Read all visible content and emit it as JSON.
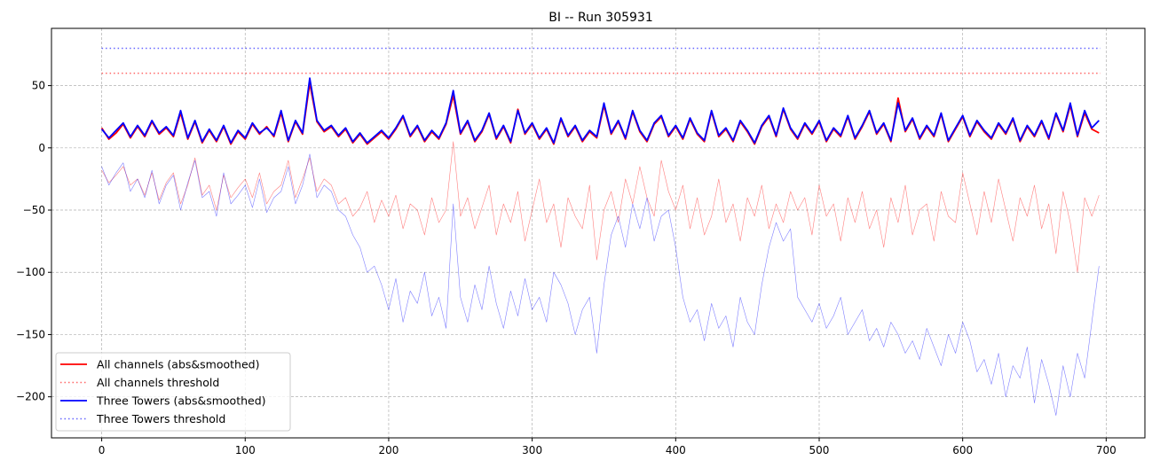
{
  "chart_data": {
    "type": "line",
    "title": "BI -- Run 305931",
    "xlabel": "",
    "ylabel": "",
    "xlim": [
      -35,
      727
    ],
    "ylim": [
      -233,
      96
    ],
    "xticks": [
      0,
      100,
      200,
      300,
      400,
      500,
      600,
      700
    ],
    "yticks": [
      -200,
      -150,
      -100,
      -50,
      0,
      50
    ],
    "grid": true,
    "legend_position": "lower-left",
    "x_step": 5,
    "series": [
      {
        "name": "All channels raw",
        "legend": false,
        "color": "#ff0000",
        "style": "thin",
        "values": [
          -18,
          -28,
          -22,
          -15,
          -30,
          -25,
          -38,
          -20,
          -42,
          -28,
          -20,
          -45,
          -30,
          -8,
          -38,
          -30,
          -50,
          -22,
          -40,
          -32,
          -25,
          -40,
          -20,
          -45,
          -35,
          -30,
          -10,
          -40,
          -25,
          -8,
          -35,
          -25,
          -30,
          -45,
          -40,
          -55,
          -48,
          -35,
          -60,
          -42,
          -55,
          -38,
          -65,
          -45,
          -50,
          -70,
          -40,
          -60,
          -50,
          5,
          -55,
          -40,
          -65,
          -48,
          -30,
          -70,
          -45,
          -60,
          -35,
          -75,
          -50,
          -25,
          -60,
          -45,
          -80,
          -40,
          -55,
          -65,
          -30,
          -90,
          -50,
          -35,
          -60,
          -25,
          -45,
          -15,
          -40,
          -55,
          -10,
          -35,
          -50,
          -30,
          -65,
          -40,
          -70,
          -55,
          -25,
          -60,
          -45,
          -75,
          -40,
          -55,
          -30,
          -65,
          -45,
          -60,
          -35,
          -50,
          -40,
          -70,
          -30,
          -55,
          -45,
          -75,
          -40,
          -60,
          -35,
          -65,
          -50,
          -80,
          -40,
          -60,
          -30,
          -70,
          -50,
          -45,
          -75,
          -35,
          -55,
          -60,
          -20,
          -45,
          -70,
          -35,
          -60,
          -25,
          -50,
          -75,
          -40,
          -55,
          -30,
          -65,
          -45,
          -85,
          -35,
          -60,
          -100,
          -40,
          -55,
          -38
        ]
      },
      {
        "name": "Three Towers raw",
        "legend": false,
        "color": "#0000ff",
        "style": "thin",
        "values": [
          -15,
          -30,
          -20,
          -12,
          -35,
          -25,
          -40,
          -18,
          -45,
          -30,
          -22,
          -50,
          -28,
          -10,
          -40,
          -35,
          -55,
          -20,
          -45,
          -38,
          -30,
          -48,
          -25,
          -52,
          -40,
          -35,
          -15,
          -45,
          -30,
          -5,
          -40,
          -30,
          -35,
          -50,
          -55,
          -70,
          -80,
          -100,
          -95,
          -110,
          -130,
          -105,
          -140,
          -115,
          -125,
          -100,
          -135,
          -120,
          -145,
          -45,
          -120,
          -140,
          -110,
          -130,
          -95,
          -125,
          -145,
          -115,
          -135,
          -105,
          -130,
          -120,
          -140,
          -100,
          -110,
          -125,
          -150,
          -130,
          -120,
          -165,
          -110,
          -70,
          -55,
          -80,
          -45,
          -65,
          -40,
          -75,
          -55,
          -50,
          -80,
          -120,
          -140,
          -130,
          -155,
          -125,
          -145,
          -135,
          -160,
          -120,
          -140,
          -150,
          -110,
          -80,
          -60,
          -75,
          -65,
          -120,
          -130,
          -140,
          -125,
          -145,
          -135,
          -120,
          -150,
          -140,
          -130,
          -155,
          -145,
          -160,
          -140,
          -150,
          -165,
          -155,
          -170,
          -145,
          -160,
          -175,
          -150,
          -165,
          -140,
          -155,
          -180,
          -170,
          -190,
          -165,
          -200,
          -175,
          -185,
          -160,
          -205,
          -170,
          -190,
          -215,
          -175,
          -200,
          -165,
          -185,
          -140,
          -95
        ]
      },
      {
        "name": "All channels (abs&smoothed)",
        "legend": true,
        "color": "#ff0000",
        "style": "solid",
        "values": [
          16,
          7,
          12,
          19,
          8,
          17,
          9,
          21,
          11,
          16,
          9,
          28,
          7,
          21,
          4,
          14,
          5,
          17,
          3,
          13,
          7,
          19,
          11,
          17,
          9,
          28,
          5,
          21,
          11,
          52,
          21,
          13,
          17,
          9,
          15,
          4,
          11,
          3,
          8,
          13,
          7,
          15,
          25,
          9,
          17,
          5,
          13,
          7,
          19,
          42,
          11,
          21,
          5,
          13,
          27,
          7,
          17,
          4,
          31,
          11,
          19,
          7,
          15,
          3,
          23,
          9,
          17,
          5,
          13,
          8,
          34,
          11,
          21,
          7,
          29,
          13,
          5,
          19,
          25,
          9,
          17,
          7,
          23,
          11,
          5,
          29,
          9,
          15,
          5,
          21,
          13,
          3,
          17,
          25,
          9,
          31,
          15,
          7,
          19,
          11,
          21,
          5,
          15,
          9,
          25,
          7,
          17,
          29,
          11,
          19,
          5,
          40,
          13,
          23,
          7,
          17,
          9,
          27,
          5,
          15,
          25,
          9,
          21,
          13,
          7,
          19,
          11,
          23,
          5,
          17,
          9,
          21,
          7,
          27,
          13,
          34,
          9,
          28,
          15,
          12
        ]
      },
      {
        "name": "Three Towers (abs&smoothed)",
        "legend": true,
        "color": "#0000ff",
        "style": "solid",
        "values": [
          15,
          8,
          14,
          20,
          9,
          18,
          10,
          22,
          12,
          17,
          10,
          30,
          8,
          22,
          5,
          15,
          6,
          18,
          4,
          14,
          8,
          20,
          12,
          16,
          10,
          30,
          6,
          22,
          12,
          56,
          22,
          14,
          18,
          10,
          16,
          5,
          12,
          4,
          9,
          14,
          8,
          16,
          26,
          10,
          18,
          6,
          14,
          8,
          20,
          46,
          12,
          22,
          6,
          14,
          28,
          8,
          18,
          5,
          30,
          12,
          20,
          8,
          16,
          4,
          24,
          10,
          18,
          6,
          14,
          9,
          36,
          12,
          22,
          8,
          30,
          14,
          6,
          20,
          26,
          10,
          18,
          8,
          24,
          12,
          6,
          30,
          10,
          16,
          6,
          22,
          14,
          4,
          18,
          26,
          10,
          32,
          16,
          8,
          20,
          12,
          22,
          6,
          16,
          10,
          26,
          8,
          18,
          30,
          12,
          20,
          6,
          36,
          14,
          24,
          8,
          18,
          10,
          28,
          6,
          16,
          26,
          10,
          22,
          14,
          8,
          20,
          12,
          24,
          6,
          18,
          10,
          22,
          8,
          28,
          14,
          36,
          10,
          30,
          16,
          22
        ]
      },
      {
        "name": "All channels threshold",
        "legend": true,
        "color": "#ff0000",
        "style": "dotted",
        "x": [
          0,
          696
        ],
        "values": [
          60,
          60
        ]
      },
      {
        "name": "Three Towers threshold",
        "legend": true,
        "color": "#0000ff",
        "style": "dotted",
        "x": [
          0,
          696
        ],
        "values": [
          80,
          80
        ]
      }
    ]
  }
}
